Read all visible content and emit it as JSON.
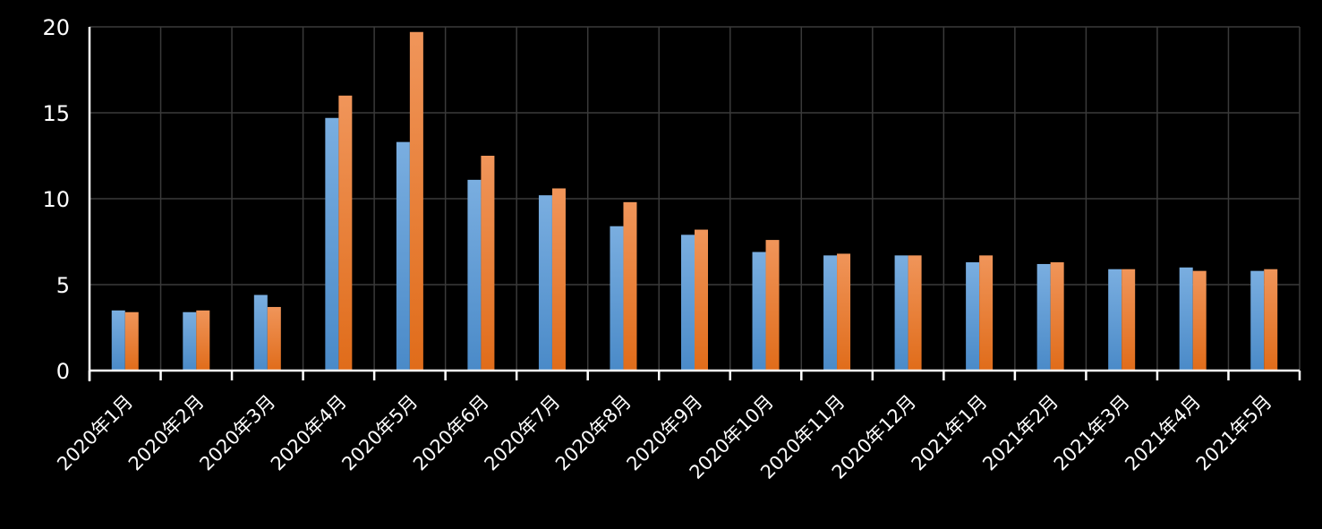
{
  "chart_data": {
    "type": "bar",
    "title": "",
    "xlabel": "",
    "ylabel": "",
    "ylim": [
      0,
      20
    ],
    "yticks": [
      0,
      5,
      10,
      15,
      20
    ],
    "grid": true,
    "legend": "none",
    "categories": [
      "2020年1月",
      "2020年2月",
      "2020年3月",
      "2020年4月",
      "2020年5月",
      "2020年6月",
      "2020年7月",
      "2020年8月",
      "2020年9月",
      "2020年10月",
      "2020年11月",
      "2020年12月",
      "2021年1月",
      "2021年2月",
      "2021年3月",
      "2021年4月",
      "2021年5月"
    ],
    "series": [
      {
        "color": "#5b9bd5",
        "values": [
          3.5,
          3.4,
          4.4,
          14.7,
          13.3,
          11.1,
          10.2,
          8.4,
          7.9,
          6.9,
          6.7,
          6.7,
          6.3,
          6.2,
          5.9,
          6.0,
          5.8
        ]
      },
      {
        "color": "#ed7d31",
        "values": [
          3.4,
          3.5,
          3.7,
          16.0,
          19.7,
          12.5,
          10.6,
          9.8,
          8.2,
          7.6,
          6.8,
          6.7,
          6.7,
          6.3,
          5.9,
          5.8,
          5.9
        ]
      }
    ],
    "background": "#000000"
  }
}
